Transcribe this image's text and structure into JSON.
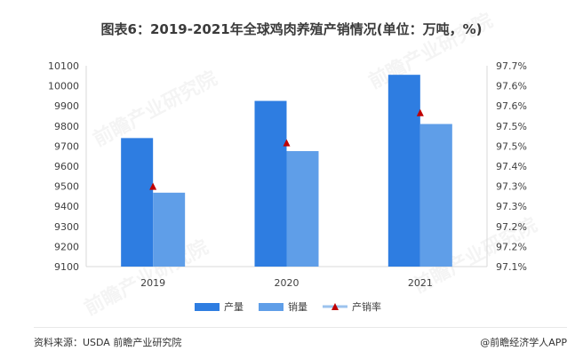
{
  "header": {
    "title": "图表6：2019-2021年全球鸡肉养殖产销情况(单位：万吨，%)"
  },
  "footer": {
    "source": "资料来源：USDA 前瞻产业研究院",
    "brand": "@前瞻经济学人APP"
  },
  "watermark": "前瞻产业研究院",
  "colors": {
    "production": "#2e7de1",
    "sales": "#5f9ee8",
    "rate": "#c00000",
    "legend_line": "#9cc3ee"
  },
  "chart_data": {
    "type": "bar",
    "categories": [
      "2019",
      "2020",
      "2021"
    ],
    "series": [
      {
        "name": "产量",
        "type": "bar",
        "axis": "left",
        "values": [
          9740,
          9925,
          10055
        ]
      },
      {
        "name": "销量",
        "type": "bar",
        "axis": "left",
        "values": [
          9468,
          9675,
          9810
        ]
      },
      {
        "name": "产销率",
        "type": "line-marker",
        "axis": "right",
        "values": [
          97.34,
          97.47,
          97.56
        ]
      }
    ],
    "y_left": {
      "min": 9100,
      "max": 10100,
      "ticks": [
        "9100",
        "9200",
        "9300",
        "9400",
        "9500",
        "9600",
        "9700",
        "9800",
        "9900",
        "10000",
        "10100"
      ]
    },
    "y_right": {
      "min": 97.1,
      "max": 97.7,
      "ticks": [
        "97.1%",
        "97.2%",
        "97.2%",
        "97.3%",
        "97.3%",
        "97.4%",
        "97.5%",
        "97.5%",
        "97.6%",
        "97.6%",
        "97.7%"
      ]
    },
    "legend_position": "bottom-center",
    "grid": false
  }
}
